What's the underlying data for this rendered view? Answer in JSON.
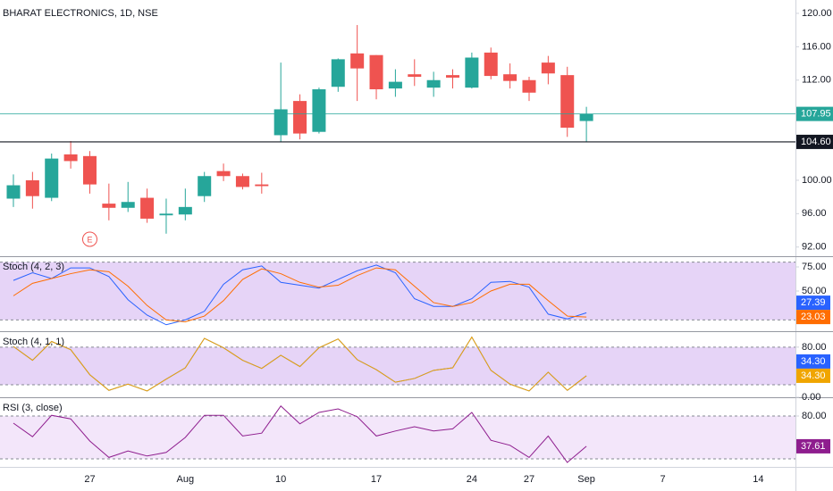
{
  "chart_data": [
    {
      "type": "candlestick",
      "title": "BHARAT ELECTRONICS, 1D, NSE",
      "earnings_marker": "E",
      "categories": [
        null,
        null,
        null,
        null,
        "27",
        null,
        null,
        null,
        null,
        "Aug",
        null,
        null,
        null,
        null,
        "10",
        null,
        null,
        null,
        null,
        "17",
        null,
        null,
        null,
        null,
        "24",
        null,
        null,
        "27",
        null,
        null,
        "Sep",
        null,
        null,
        null,
        "7",
        null,
        null,
        null,
        null,
        "14"
      ],
      "open": [
        97.8,
        100.0,
        97.9,
        103.1,
        102.9,
        97.2,
        96.7,
        97.9,
        95.8,
        95.9,
        98.1,
        101.1,
        100.5,
        99.5,
        105.4,
        109.5,
        105.8,
        111.2,
        115.2,
        115.0,
        111.0,
        112.7,
        111.1,
        112.6,
        111.1,
        115.3,
        112.7,
        112.0,
        114.1,
        112.6,
        107.1,
        null,
        null,
        null,
        null,
        null,
        null,
        null,
        null,
        null
      ],
      "high": [
        100.7,
        101.0,
        103.2,
        104.7,
        103.5,
        99.6,
        99.8,
        99.0,
        97.8,
        99.0,
        101.0,
        102.0,
        100.8,
        100.9,
        114.1,
        110.3,
        111.1,
        114.6,
        118.6,
        115.0,
        113.3,
        114.5,
        113.0,
        113.3,
        115.3,
        115.9,
        114.0,
        112.4,
        114.9,
        113.6,
        108.8,
        null,
        null,
        null,
        null,
        null,
        null,
        null,
        null,
        null
      ],
      "low": [
        96.8,
        96.6,
        97.5,
        101.4,
        98.4,
        95.2,
        96.2,
        94.9,
        93.6,
        95.2,
        97.4,
        99.9,
        98.9,
        98.4,
        104.6,
        104.9,
        105.6,
        110.6,
        109.5,
        109.7,
        110.0,
        111.3,
        110.0,
        111.0,
        111.0,
        112.1,
        111.0,
        109.5,
        111.5,
        105.2,
        104.6,
        null,
        null,
        null,
        null,
        null,
        null,
        null,
        null,
        null
      ],
      "close": [
        99.4,
        98.1,
        102.6,
        102.3,
        99.5,
        96.7,
        97.4,
        95.4,
        96.0,
        96.8,
        100.5,
        100.5,
        99.2,
        99.3,
        108.5,
        105.6,
        110.9,
        114.5,
        113.4,
        110.9,
        111.8,
        112.4,
        112.0,
        112.3,
        114.7,
        112.5,
        111.9,
        110.5,
        112.8,
        106.3,
        107.95,
        null,
        null,
        null,
        null,
        null,
        null,
        null,
        null,
        null
      ],
      "up_color": "#26a69a",
      "down_color": "#ef5350",
      "ylim": [
        90.9,
        121.6
      ],
      "yticks": [
        {
          "value": 92,
          "label": "92.00"
        },
        {
          "value": 96,
          "label": "96.00"
        },
        {
          "value": 100,
          "label": "100.00"
        },
        {
          "value": 112,
          "label": "112.00"
        },
        {
          "value": 116,
          "label": "116.00"
        },
        {
          "value": 120,
          "label": "120.00"
        }
      ],
      "price_lines": [
        {
          "value": 107.95,
          "color": "#26a69a"
        },
        {
          "value": 104.6,
          "label": "104.60",
          "color": "#131722"
        }
      ]
    },
    {
      "type": "line",
      "title": "Stoch (4, 2, 3)",
      "ylim": [
        8.3,
        85.2
      ],
      "yticks": [
        {
          "value": 50,
          "label": "50.00"
        },
        {
          "value": 75,
          "label": "75.00"
        }
      ],
      "band": [
        20,
        80
      ],
      "band_color": "#e6d4f7",
      "series": [
        {
          "color": "#2962ff",
          "values": [
            61,
            69,
            63,
            74,
            74,
            65,
            41,
            25,
            15,
            20,
            29,
            57,
            72,
            76,
            59,
            56,
            53,
            62,
            71,
            77,
            69,
            42,
            34,
            34,
            42,
            59,
            60,
            54,
            26,
            21,
            27.39
          ]
        },
        {
          "color": "#ff6d00",
          "values": [
            45,
            58,
            63,
            68,
            72,
            70,
            55,
            35,
            20,
            18,
            24,
            40,
            62,
            73,
            68,
            59,
            54,
            56,
            66,
            74,
            72,
            55,
            38,
            34,
            38,
            50,
            57,
            57,
            40,
            24,
            23.03
          ]
        }
      ]
    },
    {
      "type": "line",
      "title": "Stoch (4, 1, 1)",
      "ylim": [
        0,
        104
      ],
      "yticks": [
        {
          "value": 0,
          "label": "0.00"
        },
        {
          "value": 80,
          "label": "80.00"
        }
      ],
      "band": [
        20,
        80
      ],
      "band_color": "#e6d4f7",
      "series": [
        {
          "color": "#2962ff",
          "values": [
            81,
            59,
            89,
            76,
            36,
            11,
            21,
            10,
            29,
            47,
            94,
            79,
            59,
            46,
            67,
            49,
            79,
            93,
            60,
            44,
            24,
            30,
            43,
            47,
            96,
            43,
            21,
            10,
            40,
            11,
            34.3
          ],
          "value_labels": [
            null,
            null,
            null,
            null,
            null,
            null,
            null,
            null,
            null,
            null,
            null,
            null,
            null,
            null,
            null,
            null,
            null,
            null,
            null,
            null,
            null,
            null,
            null,
            null,
            null,
            null,
            null,
            null,
            null,
            null,
            "34.30"
          ]
        },
        {
          "color": "#f0a500",
          "values": [
            81,
            59,
            89,
            76,
            36,
            11,
            21,
            10,
            29,
            47,
            94,
            79,
            59,
            46,
            67,
            49,
            79,
            93,
            60,
            44,
            24,
            30,
            43,
            47,
            96,
            43,
            21,
            10,
            40,
            11,
            34.3
          ],
          "value_labels": [
            null,
            null,
            null,
            null,
            null,
            null,
            null,
            null,
            null,
            null,
            null,
            null,
            null,
            null,
            null,
            null,
            null,
            null,
            null,
            null,
            null,
            null,
            null,
            null,
            null,
            null,
            null,
            null,
            null,
            null,
            "34.30"
          ]
        }
      ]
    },
    {
      "type": "line",
      "title": "RSI (3, close)",
      "ylim": [
        12.5,
        105
      ],
      "yticks": [
        {
          "value": 80,
          "label": "80.00"
        }
      ],
      "band": [
        20,
        80
      ],
      "band_color": "#f3e6fa",
      "series": [
        {
          "color": "#8e1d8e",
          "values": [
            70,
            51,
            81,
            76,
            45,
            22,
            31,
            24,
            29,
            50,
            81,
            81,
            52,
            56,
            94,
            69,
            85,
            90,
            79,
            52,
            59,
            65,
            59,
            62,
            85,
            46,
            39,
            22,
            52,
            15,
            37.61
          ]
        }
      ]
    }
  ]
}
